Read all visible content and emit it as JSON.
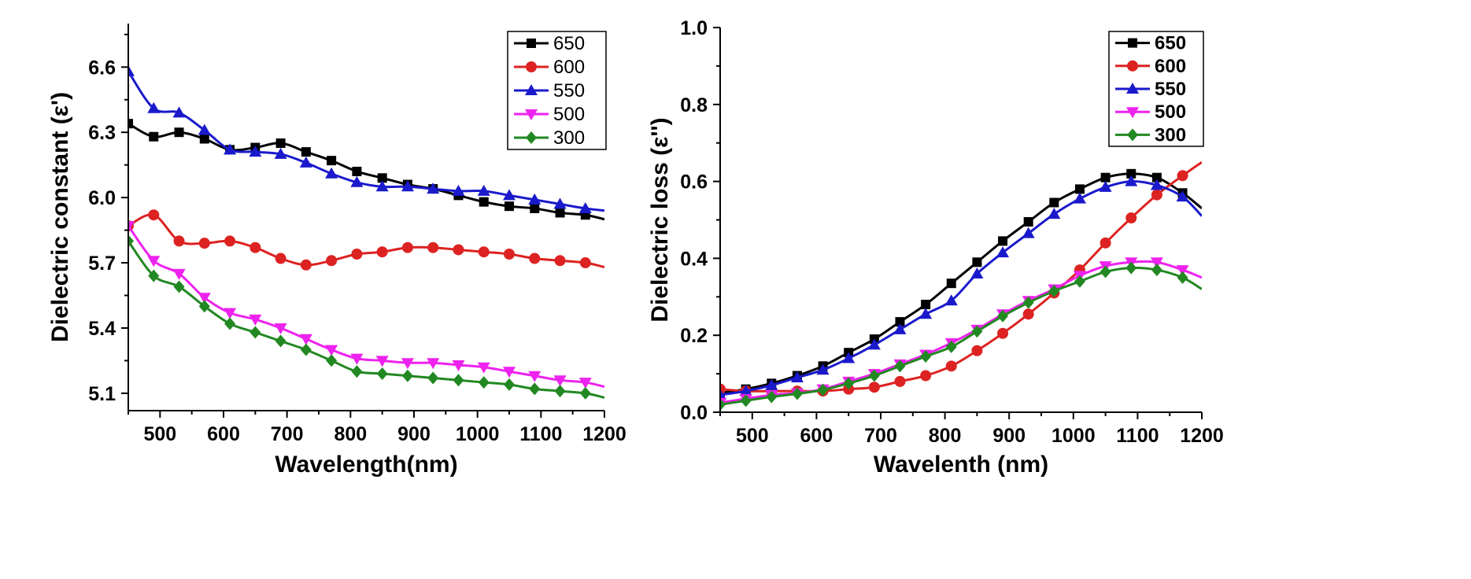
{
  "chart_data": [
    {
      "type": "line",
      "xlabel": "Wavelength(nm)",
      "ylabel": "Dielectric constant (ε')",
      "xlim": [
        450,
        1200
      ],
      "ylim": [
        5.02,
        6.8
      ],
      "xticks": [
        500,
        600,
        700,
        800,
        900,
        1000,
        1100,
        1200
      ],
      "yticks": [
        5.1,
        5.4,
        5.7,
        6.0,
        6.3,
        6.6
      ],
      "ytick_labels": [
        "5.1",
        "5.4",
        "5.7",
        "6.0",
        "6.3",
        "6.6"
      ],
      "xtick_labels": [
        "500",
        "600",
        "700",
        "800",
        "900",
        "1000",
        "1100",
        "1200"
      ],
      "grid": false,
      "legend": "top-right",
      "x": [
        450,
        490,
        530,
        570,
        610,
        650,
        690,
        730,
        770,
        810,
        850,
        890,
        930,
        970,
        1010,
        1050,
        1090,
        1130,
        1170
      ],
      "x_end": 1200,
      "series": [
        {
          "name": "650",
          "color": "#000000",
          "marker": "square",
          "values": [
            6.34,
            6.28,
            6.3,
            6.27,
            6.22,
            6.23,
            6.25,
            6.21,
            6.17,
            6.12,
            6.09,
            6.06,
            6.04,
            6.01,
            5.98,
            5.96,
            5.95,
            5.93,
            5.92
          ],
          "end_value": 5.9
        },
        {
          "name": "600",
          "color": "#dd2222",
          "marker": "circle",
          "values": [
            5.87,
            5.92,
            5.8,
            5.79,
            5.8,
            5.77,
            5.72,
            5.69,
            5.71,
            5.74,
            5.75,
            5.77,
            5.77,
            5.76,
            5.75,
            5.74,
            5.72,
            5.71,
            5.7
          ],
          "end_value": 5.68
        },
        {
          "name": "550",
          "color": "#1a1acc",
          "marker": "triangle-up",
          "values": [
            6.58,
            6.41,
            6.39,
            6.31,
            6.22,
            6.21,
            6.2,
            6.16,
            6.11,
            6.07,
            6.05,
            6.05,
            6.04,
            6.03,
            6.03,
            6.01,
            5.99,
            5.97,
            5.95
          ],
          "end_value": 5.94
        },
        {
          "name": "500",
          "color": "#ee22ee",
          "marker": "triangle-down",
          "values": [
            5.87,
            5.71,
            5.65,
            5.54,
            5.47,
            5.44,
            5.4,
            5.35,
            5.3,
            5.26,
            5.25,
            5.24,
            5.24,
            5.23,
            5.22,
            5.2,
            5.18,
            5.16,
            5.15
          ],
          "end_value": 5.13
        },
        {
          "name": "300",
          "color": "#228822",
          "marker": "diamond",
          "values": [
            5.8,
            5.64,
            5.59,
            5.5,
            5.42,
            5.38,
            5.34,
            5.3,
            5.25,
            5.2,
            5.19,
            5.18,
            5.17,
            5.16,
            5.15,
            5.14,
            5.12,
            5.11,
            5.1
          ],
          "end_value": 5.08
        }
      ]
    },
    {
      "type": "line",
      "xlabel": "Wavelenth (nm)",
      "ylabel": "Dielectric loss (ε'')",
      "xlim": [
        450,
        1200
      ],
      "ylim": [
        0.0,
        1.0
      ],
      "xticks": [
        500,
        600,
        700,
        800,
        900,
        1000,
        1100,
        1200
      ],
      "yticks": [
        0.0,
        0.2,
        0.4,
        0.6,
        0.8,
        1.0
      ],
      "ytick_labels": [
        "0.0",
        "0.2",
        "0.4",
        "0.6",
        "0.8",
        "1.0"
      ],
      "xtick_labels": [
        "500",
        "600",
        "700",
        "800",
        "900",
        "1000",
        "1100",
        "1200"
      ],
      "grid": false,
      "legend": "top-right",
      "x": [
        450,
        490,
        530,
        570,
        610,
        650,
        690,
        730,
        770,
        810,
        850,
        890,
        930,
        970,
        1010,
        1050,
        1090,
        1130,
        1170
      ],
      "x_end": 1200,
      "series": [
        {
          "name": "650",
          "color": "#000000",
          "marker": "square",
          "values": [
            0.05,
            0.06,
            0.075,
            0.095,
            0.12,
            0.155,
            0.19,
            0.235,
            0.28,
            0.335,
            0.39,
            0.445,
            0.495,
            0.545,
            0.58,
            0.61,
            0.62,
            0.61,
            0.57
          ],
          "end_value": 0.53
        },
        {
          "name": "600",
          "color": "#dd2222",
          "marker": "circle",
          "values": [
            0.06,
            0.055,
            0.055,
            0.055,
            0.055,
            0.06,
            0.065,
            0.08,
            0.095,
            0.12,
            0.16,
            0.205,
            0.255,
            0.31,
            0.37,
            0.44,
            0.505,
            0.565,
            0.615
          ],
          "end_value": 0.65
        },
        {
          "name": "550",
          "color": "#1a1acc",
          "marker": "triangle-up",
          "values": [
            0.045,
            0.055,
            0.07,
            0.09,
            0.11,
            0.14,
            0.175,
            0.215,
            0.255,
            0.29,
            0.36,
            0.415,
            0.465,
            0.515,
            0.555,
            0.585,
            0.6,
            0.59,
            0.56
          ],
          "end_value": 0.51
        },
        {
          "name": "500",
          "color": "#ee22ee",
          "marker": "triangle-down",
          "values": [
            0.025,
            0.035,
            0.045,
            0.05,
            0.06,
            0.08,
            0.1,
            0.125,
            0.15,
            0.18,
            0.215,
            0.255,
            0.29,
            0.32,
            0.355,
            0.38,
            0.39,
            0.39,
            0.37
          ],
          "end_value": 0.35
        },
        {
          "name": "300",
          "color": "#228822",
          "marker": "diamond",
          "values": [
            0.02,
            0.03,
            0.04,
            0.048,
            0.058,
            0.075,
            0.095,
            0.12,
            0.145,
            0.17,
            0.21,
            0.25,
            0.285,
            0.315,
            0.34,
            0.365,
            0.375,
            0.37,
            0.35
          ],
          "end_value": 0.32
        }
      ]
    }
  ]
}
